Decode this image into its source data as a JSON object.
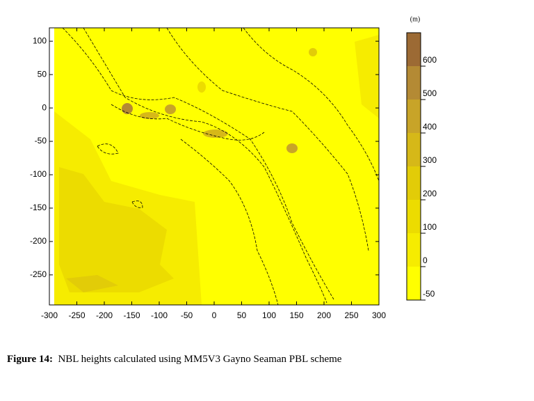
{
  "chart_data": {
    "type": "contour",
    "xlim": [
      -300,
      300
    ],
    "xticks": [
      -300,
      -250,
      -200,
      -150,
      -100,
      -50,
      0,
      50,
      100,
      150,
      200,
      250,
      300
    ],
    "ylim": [
      -295,
      120
    ],
    "yticks": [
      -250,
      -200,
      -150,
      -100,
      -50,
      0,
      50,
      100
    ],
    "colorbar": {
      "unit": "(m)",
      "levels": [
        -50,
        0,
        100,
        200,
        300,
        400,
        500,
        600,
        700
      ],
      "colors": [
        "#ffff00",
        "#f6ec00",
        "#ecdc00",
        "#e2cc08",
        "#d6b818",
        "#c8a428",
        "#b48a34",
        "#9c6a34"
      ],
      "ticks": [
        -50,
        0,
        100,
        200,
        300,
        400,
        500,
        600
      ]
    },
    "caption_label": "Figure 14:",
    "caption": "NBL heights calculated using MM5V3 Gayno Seaman PBL scheme"
  }
}
